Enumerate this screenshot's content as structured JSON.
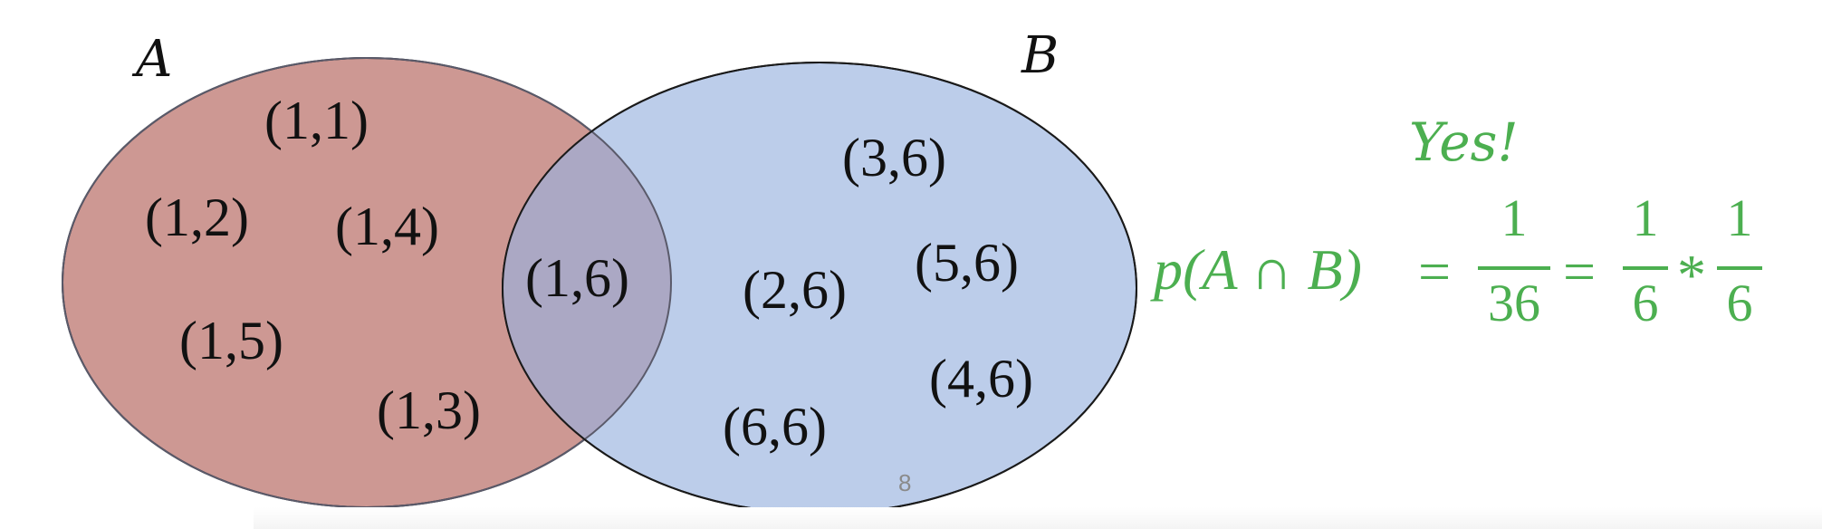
{
  "sets": {
    "a_label": "A",
    "b_label": "B",
    "a_color": "#cd9893",
    "b_color": "#bccdea",
    "overlap_color": "#aba8c4"
  },
  "elements": {
    "a_only": [
      "(1,1)",
      "(1,2)",
      "(1,4)",
      "(1,5)",
      "(1,3)"
    ],
    "intersection": [
      "(1,6)"
    ],
    "b_only": [
      "(3,6)",
      "(2,6)",
      "(5,6)",
      "(4,6)",
      "(6,6)"
    ]
  },
  "slide_number": "8",
  "annotation": {
    "yes": "Yes!",
    "equation": {
      "lhs": "p(A ∩ B)",
      "equals": "=",
      "frac1_num": "1",
      "frac1_den": "36",
      "frac2_num": "1",
      "frac2_den": "6",
      "times": "*",
      "frac3_num": "1",
      "frac3_den": "6"
    },
    "color": "#4caf50"
  }
}
